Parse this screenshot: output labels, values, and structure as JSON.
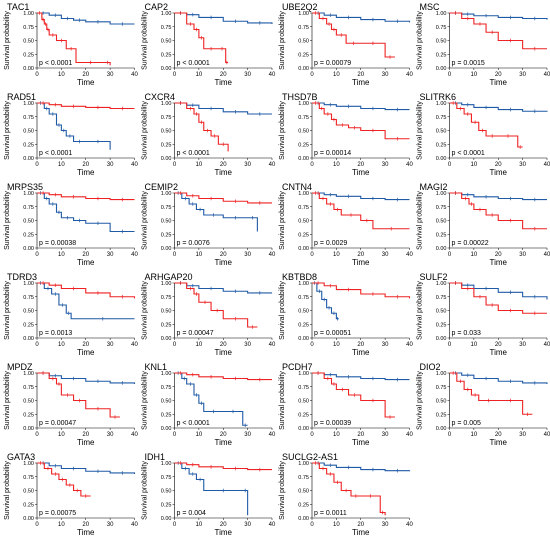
{
  "common": {
    "ylabel": "Survival probability",
    "xlabel": "Time",
    "xticks": [
      0,
      10,
      20,
      30,
      40
    ],
    "yticks": [
      "0.00",
      "0.25",
      "0.50",
      "0.75",
      "1.00"
    ],
    "xlim": [
      0,
      40
    ],
    "ylim": [
      0,
      1
    ],
    "colors": {
      "low": "#1f5aa6",
      "high": "#ee2222"
    }
  },
  "chart_data": [
    {
      "type": "line",
      "title": "TAC1",
      "pvalue": "p < 0.0001",
      "series": [
        {
          "color": "#1f5aa6",
          "x": [
            0,
            5,
            10,
            15,
            20,
            30,
            40
          ],
          "y": [
            1,
            0.96,
            0.9,
            0.87,
            0.84,
            0.8,
            0.8
          ]
        },
        {
          "color": "#ee2222",
          "x": [
            0,
            2,
            3,
            4,
            5,
            8,
            12,
            16,
            28,
            30
          ],
          "y": [
            1,
            0.88,
            0.8,
            0.7,
            0.6,
            0.5,
            0.35,
            0.1,
            0.1,
            0.05
          ]
        }
      ]
    },
    {
      "type": "line",
      "title": "CAP2",
      "pvalue": "p < 0.0001",
      "series": [
        {
          "color": "#1f5aa6",
          "x": [
            0,
            5,
            10,
            20,
            30,
            40
          ],
          "y": [
            1,
            0.97,
            0.92,
            0.85,
            0.82,
            0.8
          ]
        },
        {
          "color": "#ee2222",
          "x": [
            0,
            5,
            8,
            10,
            12,
            18,
            21,
            22
          ],
          "y": [
            1,
            0.8,
            0.7,
            0.55,
            0.35,
            0.35,
            0.1,
            0.1
          ]
        }
      ]
    },
    {
      "type": "line",
      "title": "UBE2Q2",
      "pvalue": "p = 0.00079",
      "series": [
        {
          "color": "#1f5aa6",
          "x": [
            0,
            5,
            10,
            20,
            30,
            40
          ],
          "y": [
            1,
            0.96,
            0.92,
            0.88,
            0.85,
            0.83
          ]
        },
        {
          "color": "#ee2222",
          "x": [
            0,
            3,
            6,
            8,
            10,
            14,
            20,
            30,
            34
          ],
          "y": [
            1,
            0.9,
            0.8,
            0.7,
            0.6,
            0.45,
            0.45,
            0.2,
            0.2
          ]
        }
      ]
    },
    {
      "type": "line",
      "title": "MSC",
      "pvalue": "p = 0.0015",
      "series": [
        {
          "color": "#1f5aa6",
          "x": [
            0,
            5,
            10,
            20,
            30,
            40
          ],
          "y": [
            1,
            0.98,
            0.95,
            0.92,
            0.9,
            0.88
          ]
        },
        {
          "color": "#ee2222",
          "x": [
            0,
            5,
            10,
            15,
            20,
            30,
            40
          ],
          "y": [
            1,
            0.9,
            0.8,
            0.65,
            0.5,
            0.35,
            0.35
          ]
        }
      ]
    },
    {
      "type": "line",
      "title": "RAD51",
      "pvalue": "p < 0.0001",
      "series": [
        {
          "color": "#1f5aa6",
          "x": [
            0,
            3,
            5,
            8,
            10,
            12,
            15,
            20,
            30
          ],
          "y": [
            1,
            0.9,
            0.8,
            0.6,
            0.5,
            0.4,
            0.3,
            0.3,
            0.15
          ]
        },
        {
          "color": "#ee2222",
          "x": [
            0,
            5,
            10,
            20,
            30,
            40
          ],
          "y": [
            1,
            0.97,
            0.94,
            0.92,
            0.9,
            0.9
          ]
        }
      ]
    },
    {
      "type": "line",
      "title": "CXCR4",
      "pvalue": "p < 0.0001",
      "series": [
        {
          "color": "#1f5aa6",
          "x": [
            0,
            5,
            10,
            20,
            30,
            40
          ],
          "y": [
            1,
            0.96,
            0.9,
            0.84,
            0.8,
            0.8
          ]
        },
        {
          "color": "#ee2222",
          "x": [
            0,
            5,
            8,
            10,
            12,
            15,
            18,
            22
          ],
          "y": [
            1,
            0.9,
            0.8,
            0.65,
            0.5,
            0.4,
            0.25,
            0.12
          ]
        }
      ]
    },
    {
      "type": "line",
      "title": "THSD7B",
      "pvalue": "p = 0.00014",
      "series": [
        {
          "color": "#1f5aa6",
          "x": [
            0,
            5,
            10,
            20,
            30,
            40
          ],
          "y": [
            1,
            0.97,
            0.94,
            0.9,
            0.88,
            0.88
          ]
        },
        {
          "color": "#ee2222",
          "x": [
            0,
            3,
            5,
            8,
            10,
            15,
            20,
            30,
            40
          ],
          "y": [
            1,
            0.9,
            0.8,
            0.7,
            0.6,
            0.55,
            0.5,
            0.35,
            0.35
          ]
        }
      ]
    },
    {
      "type": "line",
      "title": "SLITRK6",
      "pvalue": "p < 0.0001",
      "series": [
        {
          "color": "#1f5aa6",
          "x": [
            0,
            5,
            10,
            20,
            30,
            40
          ],
          "y": [
            1,
            0.97,
            0.92,
            0.88,
            0.85,
            0.84
          ]
        },
        {
          "color": "#ee2222",
          "x": [
            0,
            3,
            6,
            9,
            12,
            15,
            20,
            28,
            30
          ],
          "y": [
            1,
            0.9,
            0.8,
            0.65,
            0.5,
            0.4,
            0.4,
            0.2,
            0.2
          ]
        }
      ]
    },
    {
      "type": "line",
      "title": "MRPS35",
      "pvalue": "p = 0.00038",
      "series": [
        {
          "color": "#1f5aa6",
          "x": [
            0,
            3,
            5,
            8,
            10,
            15,
            20,
            30,
            40
          ],
          "y": [
            1,
            0.9,
            0.8,
            0.65,
            0.55,
            0.5,
            0.45,
            0.3,
            0.3
          ]
        },
        {
          "color": "#ee2222",
          "x": [
            0,
            5,
            10,
            20,
            30,
            40
          ],
          "y": [
            1,
            0.97,
            0.93,
            0.9,
            0.88,
            0.88
          ]
        }
      ]
    },
    {
      "type": "line",
      "title": "CEMIP2",
      "pvalue": "p = 0.0076",
      "series": [
        {
          "color": "#1f5aa6",
          "x": [
            0,
            3,
            6,
            9,
            12,
            20,
            30,
            34
          ],
          "y": [
            1,
            0.9,
            0.8,
            0.7,
            0.6,
            0.55,
            0.55,
            0.3
          ]
        },
        {
          "color": "#ee2222",
          "x": [
            0,
            5,
            10,
            20,
            30,
            40
          ],
          "y": [
            1,
            0.95,
            0.9,
            0.85,
            0.82,
            0.82
          ]
        }
      ]
    },
    {
      "type": "line",
      "title": "CNTN4",
      "pvalue": "p = 0.0029",
      "series": [
        {
          "color": "#1f5aa6",
          "x": [
            0,
            5,
            10,
            20,
            30,
            40
          ],
          "y": [
            1,
            0.97,
            0.94,
            0.9,
            0.88,
            0.88
          ]
        },
        {
          "color": "#ee2222",
          "x": [
            0,
            3,
            6,
            9,
            12,
            20,
            25,
            40
          ],
          "y": [
            1,
            0.9,
            0.8,
            0.7,
            0.6,
            0.5,
            0.35,
            0.35
          ]
        }
      ]
    },
    {
      "type": "line",
      "title": "MAGI2",
      "pvalue": "p = 0.00022",
      "series": [
        {
          "color": "#1f5aa6",
          "x": [
            0,
            5,
            10,
            20,
            30,
            40
          ],
          "y": [
            1,
            0.97,
            0.93,
            0.9,
            0.88,
            0.88
          ]
        },
        {
          "color": "#ee2222",
          "x": [
            0,
            5,
            8,
            10,
            15,
            20,
            30,
            40
          ],
          "y": [
            1,
            0.9,
            0.8,
            0.7,
            0.6,
            0.5,
            0.35,
            0.35
          ]
        }
      ]
    },
    {
      "type": "line",
      "title": "TDRD3",
      "pvalue": "p = 0.0013",
      "series": [
        {
          "color": "#1f5aa6",
          "x": [
            0,
            3,
            6,
            9,
            12,
            14,
            40
          ],
          "y": [
            1,
            0.9,
            0.8,
            0.6,
            0.45,
            0.35,
            0.35
          ]
        },
        {
          "color": "#ee2222",
          "x": [
            0,
            5,
            10,
            20,
            30,
            40
          ],
          "y": [
            1,
            0.96,
            0.9,
            0.82,
            0.75,
            0.72
          ]
        }
      ]
    },
    {
      "type": "line",
      "title": "ARHGAP20",
      "pvalue": "p = 0.00047",
      "series": [
        {
          "color": "#1f5aa6",
          "x": [
            0,
            5,
            10,
            20,
            30,
            40
          ],
          "y": [
            1,
            0.95,
            0.9,
            0.85,
            0.82,
            0.82
          ]
        },
        {
          "color": "#ee2222",
          "x": [
            0,
            5,
            8,
            10,
            15,
            20,
            30,
            34
          ],
          "y": [
            1,
            0.9,
            0.8,
            0.65,
            0.5,
            0.35,
            0.2,
            0.2
          ]
        }
      ]
    },
    {
      "type": "line",
      "title": "KBTBD8",
      "pvalue": "p = 0.00051",
      "series": [
        {
          "color": "#1f5aa6",
          "x": [
            0,
            2,
            4,
            6,
            8,
            10,
            11
          ],
          "y": [
            1,
            0.85,
            0.7,
            0.55,
            0.45,
            0.35,
            0.35
          ]
        },
        {
          "color": "#ee2222",
          "x": [
            0,
            5,
            10,
            20,
            30,
            40
          ],
          "y": [
            1,
            0.95,
            0.88,
            0.8,
            0.75,
            0.72
          ]
        }
      ]
    },
    {
      "type": "line",
      "title": "SULF2",
      "pvalue": "p = 0.033",
      "series": [
        {
          "color": "#1f5aa6",
          "x": [
            0,
            5,
            10,
            20,
            30,
            40
          ],
          "y": [
            1,
            0.96,
            0.9,
            0.83,
            0.75,
            0.7
          ]
        },
        {
          "color": "#ee2222",
          "x": [
            0,
            5,
            10,
            15,
            20,
            30,
            40
          ],
          "y": [
            1,
            0.9,
            0.75,
            0.6,
            0.5,
            0.45,
            0.45
          ]
        }
      ]
    },
    {
      "type": "line",
      "title": "MPDZ",
      "pvalue": "p = 0.00047",
      "series": [
        {
          "color": "#1f5aa6",
          "x": [
            0,
            5,
            10,
            20,
            30,
            40
          ],
          "y": [
            1,
            0.95,
            0.9,
            0.85,
            0.82,
            0.8
          ]
        },
        {
          "color": "#ee2222",
          "x": [
            0,
            5,
            8,
            10,
            15,
            20,
            30,
            34
          ],
          "y": [
            1,
            0.9,
            0.8,
            0.6,
            0.5,
            0.35,
            0.2,
            0.2
          ]
        }
      ]
    },
    {
      "type": "line",
      "title": "KNL1",
      "pvalue": "p < 0.0001",
      "series": [
        {
          "color": "#1f5aa6",
          "x": [
            0,
            3,
            5,
            8,
            10,
            12,
            20,
            28,
            30
          ],
          "y": [
            1,
            0.9,
            0.8,
            0.6,
            0.45,
            0.3,
            0.3,
            0.05,
            0.05
          ]
        },
        {
          "color": "#ee2222",
          "x": [
            0,
            5,
            10,
            20,
            30,
            40
          ],
          "y": [
            1,
            0.97,
            0.93,
            0.9,
            0.88,
            0.88
          ]
        }
      ]
    },
    {
      "type": "line",
      "title": "PCDH7",
      "pvalue": "p = 0.00039",
      "series": [
        {
          "color": "#1f5aa6",
          "x": [
            0,
            5,
            10,
            20,
            30,
            40
          ],
          "y": [
            1,
            0.97,
            0.93,
            0.9,
            0.88,
            0.88
          ]
        },
        {
          "color": "#ee2222",
          "x": [
            0,
            5,
            8,
            10,
            15,
            20,
            30,
            34
          ],
          "y": [
            1,
            0.9,
            0.8,
            0.7,
            0.6,
            0.5,
            0.2,
            0.2
          ]
        }
      ]
    },
    {
      "type": "line",
      "title": "DIO2",
      "pvalue": "p = 0.005",
      "series": [
        {
          "color": "#1f5aa6",
          "x": [
            0,
            5,
            10,
            20,
            30,
            40
          ],
          "y": [
            1,
            0.96,
            0.9,
            0.85,
            0.82,
            0.8
          ]
        },
        {
          "color": "#ee2222",
          "x": [
            0,
            3,
            6,
            9,
            12,
            20,
            30,
            34
          ],
          "y": [
            1,
            0.85,
            0.7,
            0.6,
            0.5,
            0.5,
            0.25,
            0.25
          ]
        }
      ]
    },
    {
      "type": "line",
      "title": "GATA3",
      "pvalue": "p = 0.00075",
      "series": [
        {
          "color": "#1f5aa6",
          "x": [
            0,
            5,
            10,
            20,
            30,
            40
          ],
          "y": [
            1,
            0.95,
            0.9,
            0.85,
            0.82,
            0.8
          ]
        },
        {
          "color": "#ee2222",
          "x": [
            0,
            3,
            6,
            9,
            12,
            15,
            18,
            22
          ],
          "y": [
            1,
            0.9,
            0.8,
            0.7,
            0.6,
            0.5,
            0.4,
            0.4
          ]
        }
      ]
    },
    {
      "type": "line",
      "title": "IDH1",
      "pvalue": "p = 0.004",
      "series": [
        {
          "color": "#1f5aa6",
          "x": [
            0,
            3,
            6,
            9,
            12,
            28,
            30
          ],
          "y": [
            1,
            0.9,
            0.8,
            0.7,
            0.5,
            0.5,
            0.05
          ]
        },
        {
          "color": "#ee2222",
          "x": [
            0,
            5,
            10,
            20,
            30,
            40
          ],
          "y": [
            1,
            0.97,
            0.93,
            0.9,
            0.88,
            0.88
          ]
        }
      ]
    },
    {
      "type": "line",
      "title": "SUCLG2-AS1",
      "pvalue": "p = 0.0011",
      "series": [
        {
          "color": "#1f5aa6",
          "x": [
            0,
            5,
            10,
            20,
            30,
            40
          ],
          "y": [
            1,
            0.96,
            0.92,
            0.88,
            0.86,
            0.85
          ]
        },
        {
          "color": "#ee2222",
          "x": [
            0,
            3,
            6,
            9,
            12,
            16,
            20,
            28,
            30
          ],
          "y": [
            1,
            0.9,
            0.8,
            0.65,
            0.5,
            0.4,
            0.4,
            0.1,
            0.05
          ]
        }
      ]
    }
  ]
}
